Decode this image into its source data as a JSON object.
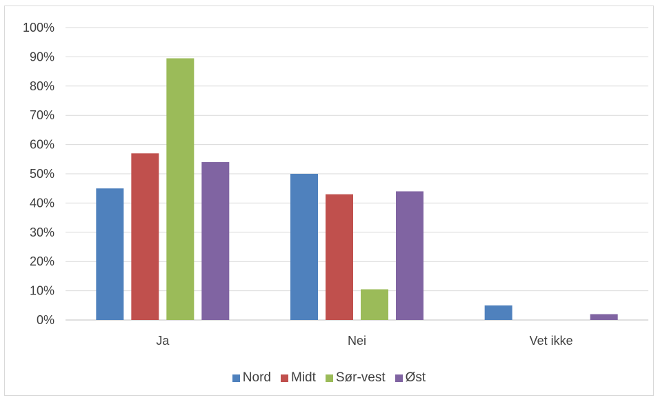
{
  "chart_data": {
    "type": "bar",
    "categories": [
      "Ja",
      "Nei",
      "Vet ikke"
    ],
    "series": [
      {
        "name": "Nord",
        "color": "#4f81bd",
        "values": [
          45,
          50,
          5
        ]
      },
      {
        "name": "Midt",
        "color": "#c0504d",
        "values": [
          57,
          43,
          0
        ]
      },
      {
        "name": "Sør-vest",
        "color": "#9bbb59",
        "values": [
          89.5,
          10.5,
          0
        ]
      },
      {
        "name": "Øst",
        "color": "#8064a2",
        "values": [
          54,
          44,
          2
        ]
      }
    ],
    "yticks": [
      "0%",
      "10%",
      "20%",
      "30%",
      "40%",
      "50%",
      "60%",
      "70%",
      "80%",
      "90%",
      "100%"
    ],
    "ylim": [
      0,
      100
    ],
    "grid": true,
    "legend": "bottom"
  }
}
